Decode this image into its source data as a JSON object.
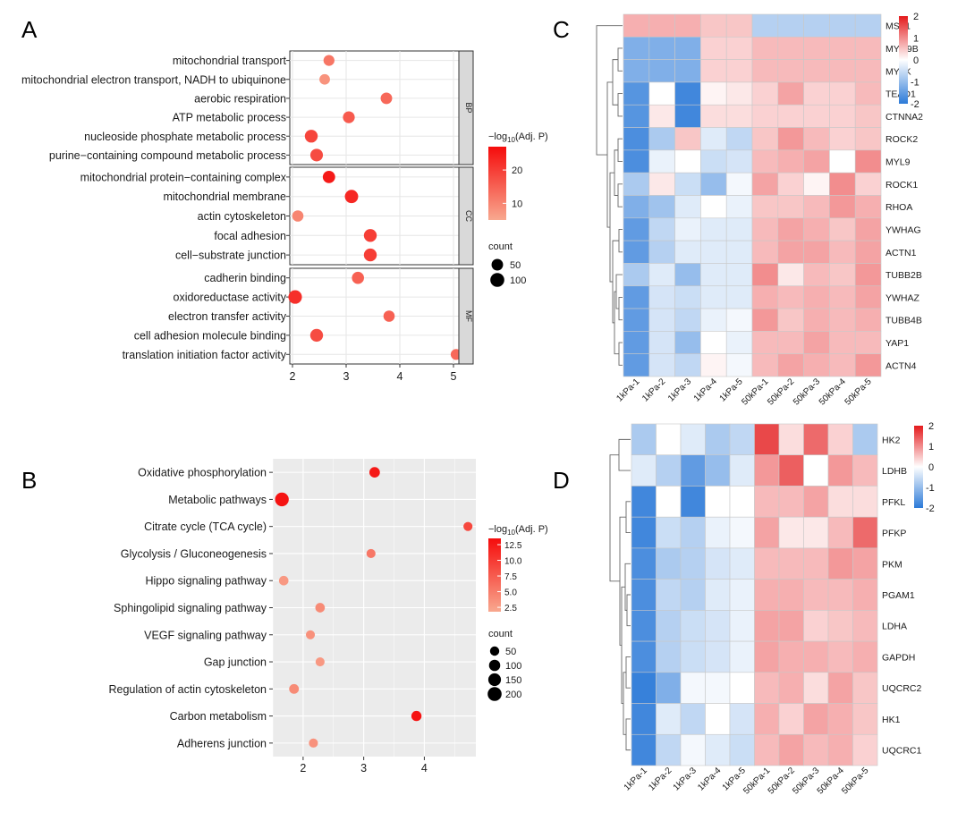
{
  "figure": {
    "panel_letters": [
      "A",
      "B",
      "C",
      "D"
    ]
  },
  "chart_data": [
    {
      "panel": "A",
      "type": "scatter",
      "subtype": "dot-plot",
      "title": "",
      "xlabel": "",
      "ylabel": "",
      "xlim": [
        1.95,
        5.1
      ],
      "x_ticks": [
        2,
        3,
        4,
        5
      ],
      "grid": true,
      "background": "#ffffff",
      "grid_color": "#e6e6e6",
      "facet_strip_color": "#d9d9d9",
      "colorbar": {
        "title": "−log10(Adj. P)",
        "ticks": [
          10,
          20
        ],
        "range": [
          5,
          27
        ],
        "colors": [
          "#f8a88f",
          "#f50c0c"
        ]
      },
      "size_legend": {
        "title": "count",
        "entries": [
          50,
          100
        ]
      },
      "legend_position": "right",
      "facets": [
        {
          "name": "BP",
          "terms": [
            {
              "label": "mitochondrial transport",
              "x": 2.68,
              "neglog10p": 12,
              "count": 40
            },
            {
              "label": "mitochondrial electron transport, NADH to ubiquinone",
              "x": 2.6,
              "neglog10p": 8,
              "count": 35
            },
            {
              "label": "aerobic respiration",
              "x": 3.75,
              "neglog10p": 14,
              "count": 50
            },
            {
              "label": "ATP metabolic process",
              "x": 3.05,
              "neglog10p": 16,
              "count": 55
            },
            {
              "label": "nucleoside phosphate metabolic process",
              "x": 2.35,
              "neglog10p": 19,
              "count": 75
            },
            {
              "label": "purine-containing compound metabolic process",
              "x": 2.45,
              "neglog10p": 18,
              "count": 70
            }
          ]
        },
        {
          "name": "CC",
          "terms": [
            {
              "label": "mitochondrial protein-containing complex",
              "x": 2.68,
              "neglog10p": 25,
              "count": 65
            },
            {
              "label": "mitochondrial membrane",
              "x": 3.1,
              "neglog10p": 23,
              "count": 85
            },
            {
              "label": "actin cytoskeleton",
              "x": 2.1,
              "neglog10p": 10,
              "count": 45
            },
            {
              "label": "focal adhesion",
              "x": 3.45,
              "neglog10p": 20,
              "count": 75
            },
            {
              "label": "cell-substrate junction",
              "x": 3.45,
              "neglog10p": 20,
              "count": 75
            }
          ]
        },
        {
          "name": "MF",
          "terms": [
            {
              "label": "cadherin binding",
              "x": 3.22,
              "neglog10p": 15,
              "count": 60
            },
            {
              "label": "oxidoreductase activity",
              "x": 2.05,
              "neglog10p": 22,
              "count": 90
            },
            {
              "label": "electron transfer activity",
              "x": 3.8,
              "neglog10p": 15,
              "count": 45
            },
            {
              "label": "cell adhesion molecule binding",
              "x": 2.45,
              "neglog10p": 18,
              "count": 75
            },
            {
              "label": "translation initiation factor activity",
              "x": 5.05,
              "neglog10p": 14,
              "count": 40
            }
          ]
        }
      ]
    },
    {
      "panel": "B",
      "type": "scatter",
      "subtype": "dot-plot",
      "title": "",
      "xlabel": "",
      "ylabel": "",
      "xlim": [
        1.5,
        4.85
      ],
      "x_ticks": [
        2,
        3,
        4
      ],
      "grid": true,
      "background": "#ebebeb",
      "grid_color": "#ffffff",
      "colorbar": {
        "title": "−log10(Adj. P)",
        "ticks": [
          2.5,
          5.0,
          7.5,
          10.0,
          12.5
        ],
        "range": [
          1.8,
          13.5
        ],
        "colors": [
          "#f8a88f",
          "#f50c0c"
        ]
      },
      "size_legend": {
        "title": "count",
        "entries": [
          50,
          100,
          150,
          200
        ]
      },
      "legend_position": "right",
      "terms": [
        {
          "label": "Oxidative phosphorylation",
          "x": 3.18,
          "neglog10p": 12.5,
          "count": 80
        },
        {
          "label": "Metabolic pathways",
          "x": 1.65,
          "neglog10p": 13,
          "count": 190
        },
        {
          "label": "Citrate cycle (TCA cycle)",
          "x": 4.72,
          "neglog10p": 9,
          "count": 45
        },
        {
          "label": "Glycolysis / Gluconeogenesis",
          "x": 3.12,
          "neglog10p": 5.5,
          "count": 45
        },
        {
          "label": "Hippo signaling pathway",
          "x": 1.68,
          "neglog10p": 3,
          "count": 55
        },
        {
          "label": "Sphingolipid signaling pathway",
          "x": 2.28,
          "neglog10p": 4,
          "count": 55
        },
        {
          "label": "VEGF signaling pathway",
          "x": 2.12,
          "neglog10p": 3.5,
          "count": 45
        },
        {
          "label": "Gap junction",
          "x": 2.28,
          "neglog10p": 3,
          "count": 45
        },
        {
          "label": "Regulation of actin cytoskeleton",
          "x": 1.85,
          "neglog10p": 4,
          "count": 60
        },
        {
          "label": "Carbon metabolism",
          "x": 3.87,
          "neglog10p": 13,
          "count": 70
        },
        {
          "label": "Adherens junction",
          "x": 2.17,
          "neglog10p": 3.5,
          "count": 45
        }
      ]
    },
    {
      "panel": "C",
      "type": "heatmap",
      "title": "",
      "columns": [
        "1kPa-1",
        "1kPa-2",
        "1kPa-3",
        "1kPa-4",
        "1kPa-5",
        "50kPa-1",
        "50kPa-2",
        "50kPa-3",
        "50kPa-4",
        "50kPa-5"
      ],
      "rows": [
        "MST1",
        "MYO9B",
        "MYLK",
        "TEAD1",
        "CTNNA2",
        "ROCK2",
        "MYL9",
        "ROCK1",
        "RHOA",
        "YWHAG",
        "ACTN1",
        "TUBB2B",
        "YWHAZ",
        "TUBB4B",
        "YAP1",
        "ACTN4"
      ],
      "values": [
        [
          0.7,
          0.7,
          0.7,
          0.5,
          0.5,
          -0.7,
          -0.7,
          -0.7,
          -0.7,
          -0.7
        ],
        [
          -1.2,
          -1.2,
          -1.2,
          0.4,
          0.4,
          0.6,
          0.6,
          0.6,
          0.6,
          0.6
        ],
        [
          -1.2,
          -1.2,
          -1.2,
          0.4,
          0.4,
          0.6,
          0.6,
          0.6,
          0.6,
          0.6
        ],
        [
          -1.6,
          0.0,
          -1.8,
          0.1,
          0.2,
          0.4,
          0.8,
          0.4,
          0.4,
          0.6
        ],
        [
          -1.6,
          0.2,
          -1.8,
          0.3,
          0.3,
          0.4,
          0.4,
          0.4,
          0.4,
          0.5
        ],
        [
          -1.7,
          -0.8,
          0.5,
          -0.3,
          -0.6,
          0.5,
          0.9,
          0.6,
          0.4,
          0.5
        ],
        [
          -1.7,
          -0.2,
          0.0,
          -0.5,
          -0.4,
          0.6,
          0.7,
          0.8,
          0.0,
          1.0
        ],
        [
          -0.8,
          0.2,
          -0.5,
          -1.0,
          -0.1,
          0.8,
          0.4,
          0.1,
          1.0,
          0.4
        ],
        [
          -1.2,
          -0.9,
          -0.3,
          0.0,
          -0.2,
          0.5,
          0.5,
          0.6,
          0.9,
          0.7
        ],
        [
          -1.5,
          -0.6,
          -0.2,
          -0.3,
          -0.3,
          0.6,
          0.8,
          0.7,
          0.5,
          0.8
        ],
        [
          -1.5,
          -0.7,
          -0.3,
          -0.3,
          -0.3,
          0.6,
          0.8,
          0.8,
          0.6,
          0.8
        ],
        [
          -0.8,
          -0.3,
          -1.0,
          -0.3,
          -0.3,
          1.0,
          0.2,
          0.6,
          0.5,
          0.9
        ],
        [
          -1.5,
          -0.4,
          -0.5,
          -0.3,
          -0.3,
          0.7,
          0.6,
          0.7,
          0.6,
          0.8
        ],
        [
          -1.5,
          -0.4,
          -0.6,
          -0.2,
          -0.1,
          0.9,
          0.5,
          0.7,
          0.6,
          0.7
        ],
        [
          -1.5,
          -0.4,
          -1.0,
          0.0,
          -0.2,
          0.6,
          0.6,
          0.8,
          0.6,
          0.6
        ],
        [
          -1.5,
          -0.4,
          -0.6,
          0.1,
          -0.1,
          0.6,
          0.8,
          0.7,
          0.6,
          0.9
        ]
      ],
      "color_scale": {
        "range": [
          -2,
          2
        ],
        "ticks": [
          2,
          1,
          0,
          -1,
          -2
        ],
        "low": "#2c7ad8",
        "mid": "#ffffff",
        "high": "#e41a1c"
      }
    },
    {
      "panel": "D",
      "type": "heatmap",
      "title": "",
      "columns": [
        "1kPa-1",
        "1kPa-2",
        "1kPa-3",
        "1kPa-4",
        "1kPa-5",
        "50kPa-1",
        "50kPa-2",
        "50kPa-3",
        "50kPa-4",
        "50kPa-5"
      ],
      "rows": [
        "HK2",
        "LDHB",
        "PFKL",
        "PFKP",
        "PKM",
        "PGAM1",
        "LDHA",
        "GAPDH",
        "UQCRC2",
        "HK1",
        "UQCRC1"
      ],
      "values": [
        [
          -0.8,
          0.0,
          -0.3,
          -0.8,
          -0.6,
          1.6,
          0.3,
          1.3,
          0.4,
          -0.8
        ],
        [
          -0.3,
          -0.7,
          -1.5,
          -1.0,
          -0.3,
          0.9,
          1.4,
          0.0,
          0.9,
          0.6
        ],
        [
          -1.8,
          0.0,
          -1.8,
          0.0,
          0.0,
          0.6,
          0.6,
          0.8,
          0.3,
          0.3
        ],
        [
          -1.8,
          -0.5,
          -0.7,
          -0.2,
          -0.1,
          0.8,
          0.2,
          0.2,
          0.6,
          1.3
        ],
        [
          -1.7,
          -0.8,
          -0.7,
          -0.4,
          -0.3,
          0.6,
          0.6,
          0.6,
          0.9,
          0.8
        ],
        [
          -1.7,
          -0.6,
          -0.7,
          -0.3,
          -0.2,
          0.7,
          0.7,
          0.6,
          0.6,
          0.7
        ],
        [
          -1.7,
          -0.7,
          -0.5,
          -0.4,
          -0.2,
          0.8,
          0.8,
          0.4,
          0.5,
          0.6
        ],
        [
          -1.7,
          -0.7,
          -0.5,
          -0.4,
          -0.2,
          0.8,
          0.7,
          0.7,
          0.6,
          0.7
        ],
        [
          -1.9,
          -1.2,
          -0.1,
          -0.1,
          0.0,
          0.6,
          0.7,
          0.3,
          0.8,
          0.5
        ],
        [
          -1.8,
          -0.3,
          -0.6,
          0.0,
          -0.4,
          0.7,
          0.4,
          0.8,
          0.7,
          0.5
        ],
        [
          -1.8,
          -0.6,
          -0.1,
          -0.3,
          -0.5,
          0.6,
          0.8,
          0.6,
          0.7,
          0.4
        ]
      ],
      "color_scale": {
        "range": [
          -2,
          2
        ],
        "ticks": [
          2,
          1,
          0,
          -1,
          -2
        ],
        "low": "#2c7ad8",
        "mid": "#ffffff",
        "high": "#e41a1c"
      }
    }
  ]
}
